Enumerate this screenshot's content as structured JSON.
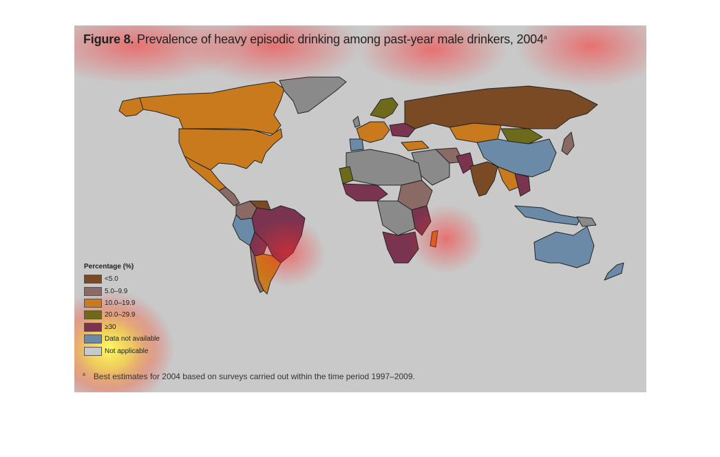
{
  "title": {
    "bold": "Figure 8.",
    "text": "Prevalence of heavy episodic drinking among past-year male drinkers, 2004",
    "sup": "a"
  },
  "legend": {
    "title": "Percentage (%)",
    "items": [
      {
        "label": "<5.0",
        "color": "#7a4a24"
      },
      {
        "label": "5.0–9.9",
        "color": "#8a6a64"
      },
      {
        "label": "10.0–19.9",
        "color": "#c87a1c"
      },
      {
        "label": "20.0–29.9",
        "color": "#6e6a1c"
      },
      {
        "label": "≥30",
        "color": "#7a3450"
      },
      {
        "label": "Data not available",
        "color": "#6a8aa8"
      },
      {
        "label": "Not applicable",
        "color": "#c9c9c9"
      }
    ]
  },
  "footnote": {
    "sup": "a",
    "text": "Best estimates for 2004 based on surveys carried out within the time period 1997–2009."
  },
  "colors": {
    "background": "#c9c9c9",
    "outline": "#222222"
  }
}
